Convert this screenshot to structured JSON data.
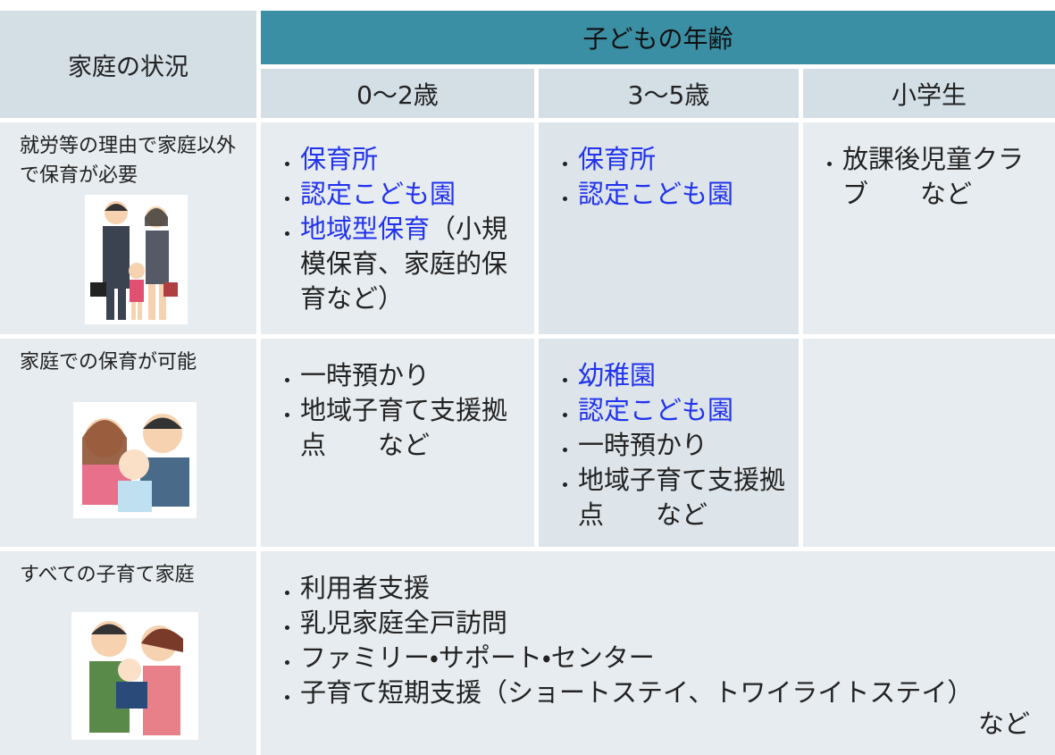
{
  "table": {
    "corner": "家庭の状況",
    "group_header": "子どもの年齢",
    "columns": [
      "0〜2歳",
      "3〜5歳",
      "小学生"
    ],
    "rows": [
      {
        "situation": "就労等の理由で家庭以外で保育が必要",
        "cells": [
          [
            [
              {
                "text": "保育所",
                "link": true
              }
            ],
            [
              {
                "text": "認定こども園",
                "link": true
              }
            ],
            [
              {
                "text": "地域型保育",
                "link": true
              },
              {
                "text": "（小規模保育、家庭的保育など）",
                "link": false
              }
            ]
          ],
          [
            [
              {
                "text": "保育所",
                "link": true
              }
            ],
            [
              {
                "text": "認定こども園",
                "link": true
              }
            ]
          ],
          [
            [
              {
                "text": "放課後児童クラブ　　など",
                "link": false
              }
            ]
          ]
        ]
      },
      {
        "situation": "家庭での保育が可能",
        "cells": [
          [
            [
              {
                "text": "一時預かり",
                "link": false
              }
            ],
            [
              {
                "text": "地域子育て支援拠点　　など",
                "link": false
              }
            ]
          ],
          [
            [
              {
                "text": "幼稚園",
                "link": true
              }
            ],
            [
              {
                "text": "認定こども園",
                "link": true
              }
            ],
            [
              {
                "text": "一時預かり",
                "link": false
              }
            ],
            [
              {
                "text": "地域子育て支援拠点　　など",
                "link": false
              }
            ]
          ],
          []
        ]
      },
      {
        "situation": "すべての子育て家庭",
        "span_cell": {
          "items": [
            [
              {
                "text": "利用者支援",
                "link": false
              }
            ],
            [
              {
                "text": "乳児家庭全戸訪問",
                "link": false
              }
            ],
            [
              {
                "text": "ファミリー・サポート・センター",
                "link": false
              }
            ],
            [
              {
                "text": "子育て短期支援（ショートステイ、トワイライトステイ）",
                "link": false
              }
            ]
          ],
          "tail": "など"
        }
      }
    ]
  }
}
